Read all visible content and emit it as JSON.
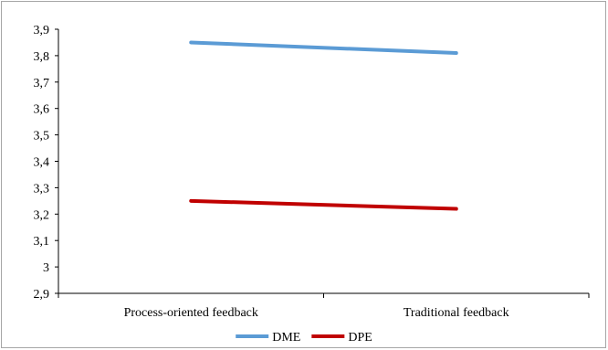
{
  "chart_data": {
    "type": "line",
    "categories": [
      "Process-oriented feedback",
      "Traditional feedback"
    ],
    "series": [
      {
        "name": "DME",
        "values": [
          3.85,
          3.81
        ],
        "color": "#5b9bd5"
      },
      {
        "name": "DPE",
        "values": [
          3.25,
          3.22
        ],
        "color": "#c00000"
      }
    ],
    "ylim": [
      2.9,
      3.9
    ],
    "yticks": [
      2.9,
      3.0,
      3.1,
      3.2,
      3.3,
      3.4,
      3.5,
      3.6,
      3.7,
      3.8,
      3.9
    ],
    "ytick_labels": [
      "2,9",
      "3",
      "3,1",
      "3,2",
      "3,3",
      "3,4",
      "3,5",
      "3,6",
      "3,7",
      "3,8",
      "3,9"
    ],
    "grid": false,
    "legend": "bottom"
  }
}
